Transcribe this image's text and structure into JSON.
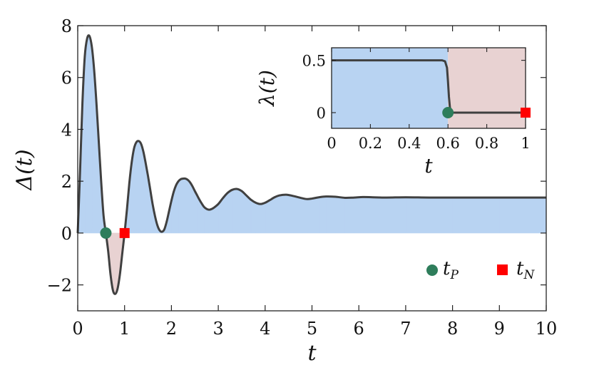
{
  "chart_data": [
    {
      "id": "main",
      "type": "area",
      "xlabel": "t",
      "ylabel": "Δ(t)",
      "xlim": [
        0,
        10
      ],
      "ylim": [
        -3,
        8
      ],
      "x_ticks": [
        0,
        1,
        2,
        3,
        4,
        5,
        6,
        7,
        8,
        9,
        10
      ],
      "y_ticks": [
        -2,
        0,
        2,
        4,
        6,
        8
      ],
      "y_tick_labels": [
        "−2",
        "0",
        "2",
        "4",
        "6",
        "8"
      ],
      "grid": false,
      "series": [
        {
          "points": [
            [
              0,
              0
            ],
            [
              0.05,
              2.4
            ],
            [
              0.1,
              5.0
            ],
            [
              0.15,
              6.8
            ],
            [
              0.2,
              7.5
            ],
            [
              0.25,
              7.6
            ],
            [
              0.3,
              7.2
            ],
            [
              0.35,
              6.3
            ],
            [
              0.4,
              5.0
            ],
            [
              0.45,
              3.5
            ],
            [
              0.5,
              2.0
            ],
            [
              0.55,
              0.7
            ],
            [
              0.6,
              0.0
            ],
            [
              0.65,
              -0.7
            ],
            [
              0.7,
              -1.6
            ],
            [
              0.75,
              -2.2
            ],
            [
              0.8,
              -2.35
            ],
            [
              0.85,
              -2.15
            ],
            [
              0.9,
              -1.6
            ],
            [
              0.95,
              -0.8
            ],
            [
              1.0,
              0.0
            ],
            [
              1.05,
              0.9
            ],
            [
              1.1,
              1.9
            ],
            [
              1.15,
              2.7
            ],
            [
              1.2,
              3.25
            ],
            [
              1.25,
              3.5
            ],
            [
              1.3,
              3.55
            ],
            [
              1.35,
              3.45
            ],
            [
              1.4,
              3.15
            ],
            [
              1.45,
              2.7
            ],
            [
              1.5,
              2.2
            ],
            [
              1.55,
              1.65
            ],
            [
              1.6,
              1.1
            ],
            [
              1.65,
              0.65
            ],
            [
              1.7,
              0.3
            ],
            [
              1.75,
              0.1
            ],
            [
              1.8,
              0.05
            ],
            [
              1.85,
              0.15
            ],
            [
              1.9,
              0.45
            ],
            [
              1.95,
              0.85
            ],
            [
              2.0,
              1.25
            ],
            [
              2.05,
              1.6
            ],
            [
              2.1,
              1.85
            ],
            [
              2.15,
              2.0
            ],
            [
              2.2,
              2.08
            ],
            [
              2.25,
              2.1
            ],
            [
              2.3,
              2.1
            ],
            [
              2.35,
              2.05
            ],
            [
              2.4,
              1.95
            ],
            [
              2.45,
              1.8
            ],
            [
              2.5,
              1.62
            ],
            [
              2.55,
              1.45
            ],
            [
              2.6,
              1.28
            ],
            [
              2.65,
              1.13
            ],
            [
              2.7,
              1.0
            ],
            [
              2.75,
              0.93
            ],
            [
              2.8,
              0.9
            ],
            [
              2.85,
              0.92
            ],
            [
              2.9,
              0.97
            ],
            [
              3.0,
              1.12
            ],
            [
              3.1,
              1.35
            ],
            [
              3.2,
              1.55
            ],
            [
              3.3,
              1.67
            ],
            [
              3.4,
              1.7
            ],
            [
              3.5,
              1.62
            ],
            [
              3.6,
              1.45
            ],
            [
              3.7,
              1.28
            ],
            [
              3.8,
              1.17
            ],
            [
              3.9,
              1.12
            ],
            [
              4.0,
              1.17
            ],
            [
              4.1,
              1.27
            ],
            [
              4.2,
              1.38
            ],
            [
              4.3,
              1.45
            ],
            [
              4.45,
              1.48
            ],
            [
              4.6,
              1.43
            ],
            [
              4.8,
              1.34
            ],
            [
              4.9,
              1.31
            ],
            [
              5.0,
              1.33
            ],
            [
              5.15,
              1.38
            ],
            [
              5.3,
              1.41
            ],
            [
              5.5,
              1.4
            ],
            [
              5.7,
              1.36
            ],
            [
              5.9,
              1.37
            ],
            [
              6.1,
              1.39
            ],
            [
              6.3,
              1.38
            ],
            [
              6.6,
              1.37
            ],
            [
              7.0,
              1.38
            ],
            [
              7.5,
              1.37
            ],
            [
              8.0,
              1.37
            ],
            [
              8.5,
              1.37
            ],
            [
              9.0,
              1.37
            ],
            [
              9.5,
              1.37
            ],
            [
              10,
              1.37
            ]
          ]
        }
      ],
      "markers": [
        {
          "label": "t",
          "sub": "P",
          "x": 0.6,
          "y": 0,
          "shape": "circle",
          "color": "#2e7d5b"
        },
        {
          "label": "t",
          "sub": "N",
          "x": 1.0,
          "y": 0,
          "shape": "square",
          "color": "#ff0000"
        }
      ],
      "legend_position": "bottom-right",
      "colors": {
        "line": "#404040",
        "positive_fill": "#b8d3f2",
        "negative_fill": "#e8d2d2"
      }
    },
    {
      "id": "inset",
      "type": "line",
      "xlabel": "t",
      "ylabel": "λ(t)",
      "xlim": [
        0,
        1
      ],
      "ylim": [
        -0.15,
        0.62
      ],
      "x_ticks": [
        0,
        0.2,
        0.4,
        0.6,
        0.8,
        1
      ],
      "x_tick_labels": [
        "0",
        "0.2",
        "0.4",
        "0.6",
        "0.8",
        "1"
      ],
      "y_ticks": [
        0,
        0.5
      ],
      "y_tick_labels": [
        "0",
        "0.5"
      ],
      "grid": false,
      "series": [
        {
          "points": [
            [
              0,
              0.5
            ],
            [
              0.57,
              0.5
            ],
            [
              0.585,
              0.49
            ],
            [
              0.595,
              0.43
            ],
            [
              0.6,
              0.3
            ],
            [
              0.605,
              0.15
            ],
            [
              0.61,
              0.05
            ],
            [
              0.617,
              0.01
            ],
            [
              0.62,
              0.0
            ],
            [
              1.0,
              0.0
            ]
          ]
        }
      ],
      "regions": [
        {
          "from": 0,
          "to": 0.6,
          "color": "#b8d3f2"
        },
        {
          "from": 0.6,
          "to": 1,
          "color": "#e8d2d2"
        }
      ],
      "markers": [
        {
          "x": 0.6,
          "y": 0,
          "shape": "circle",
          "color": "#2e7d5b"
        },
        {
          "x": 1.0,
          "y": 0,
          "shape": "square",
          "color": "#ff0000"
        }
      ]
    }
  ]
}
